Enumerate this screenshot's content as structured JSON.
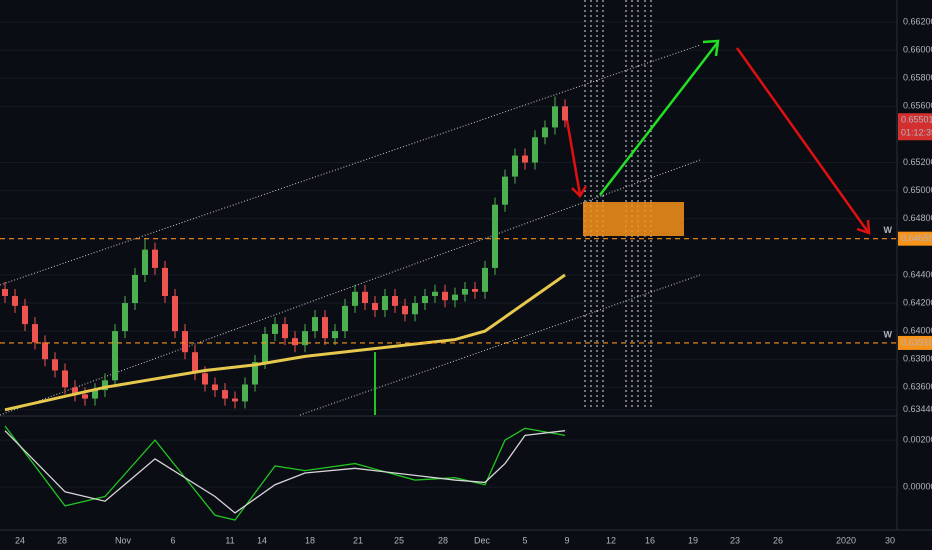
{
  "chart_data": {
    "type": "candlestick",
    "up_color": "#4caf50",
    "down_color": "#ef5350",
    "open": [
      0.643,
      0.6425,
      0.6418,
      0.6405,
      0.6392,
      0.638,
      0.6372,
      0.636,
      0.6355,
      0.6352,
      0.6358,
      0.6365,
      0.64,
      0.642,
      0.644,
      0.6458,
      0.6445,
      0.6425,
      0.64,
      0.6385,
      0.637,
      0.6362,
      0.6358,
      0.6352,
      0.635,
      0.6362,
      0.6378,
      0.6398,
      0.6405,
      0.6395,
      0.639,
      0.64,
      0.641,
      0.6395,
      0.64,
      0.6418,
      0.6428,
      0.642,
      0.6415,
      0.6425,
      0.6418,
      0.6412,
      0.642,
      0.6425,
      0.6428,
      0.6422,
      0.6426,
      0.643,
      0.6428,
      0.6445,
      0.649,
      0.651,
      0.6525,
      0.652,
      0.6538,
      0.6545,
      0.656
    ],
    "high": [
      0.6435,
      0.643,
      0.6423,
      0.641,
      0.6397,
      0.6385,
      0.6377,
      0.6365,
      0.636,
      0.6363,
      0.637,
      0.6405,
      0.6425,
      0.6445,
      0.6466,
      0.6463,
      0.645,
      0.643,
      0.6405,
      0.639,
      0.6375,
      0.6367,
      0.6363,
      0.6357,
      0.6367,
      0.6383,
      0.6403,
      0.641,
      0.641,
      0.64,
      0.6405,
      0.6415,
      0.6415,
      0.6405,
      0.6423,
      0.6433,
      0.6433,
      0.6425,
      0.643,
      0.643,
      0.6423,
      0.6425,
      0.643,
      0.6433,
      0.6433,
      0.6431,
      0.6435,
      0.6435,
      0.645,
      0.6495,
      0.6515,
      0.653,
      0.653,
      0.6543,
      0.655,
      0.6567,
      0.6565
    ],
    "low": [
      0.642,
      0.6413,
      0.64,
      0.6387,
      0.6375,
      0.6367,
      0.6355,
      0.635,
      0.6347,
      0.6347,
      0.6353,
      0.636,
      0.6395,
      0.6415,
      0.6435,
      0.644,
      0.642,
      0.6395,
      0.638,
      0.6365,
      0.6357,
      0.6353,
      0.6347,
      0.6345,
      0.6345,
      0.6357,
      0.6373,
      0.6393,
      0.639,
      0.6385,
      0.6385,
      0.6395,
      0.639,
      0.639,
      0.6395,
      0.6413,
      0.6415,
      0.641,
      0.641,
      0.6413,
      0.6407,
      0.6407,
      0.6415,
      0.642,
      0.6417,
      0.6417,
      0.6421,
      0.6423,
      0.6423,
      0.644,
      0.6485,
      0.6505,
      0.6515,
      0.6515,
      0.6533,
      0.654,
      0.6545
    ],
    "close": [
      0.6425,
      0.6418,
      0.6405,
      0.6392,
      0.638,
      0.6372,
      0.636,
      0.6355,
      0.6352,
      0.6358,
      0.6365,
      0.64,
      0.642,
      0.644,
      0.6458,
      0.6445,
      0.6425,
      0.64,
      0.6385,
      0.637,
      0.6362,
      0.6358,
      0.6352,
      0.635,
      0.6362,
      0.6378,
      0.6398,
      0.6405,
      0.6395,
      0.639,
      0.64,
      0.641,
      0.6395,
      0.64,
      0.6418,
      0.6428,
      0.642,
      0.6415,
      0.6425,
      0.6418,
      0.6412,
      0.642,
      0.6425,
      0.6428,
      0.6422,
      0.6426,
      0.643,
      0.6428,
      0.6445,
      0.649,
      0.651,
      0.6525,
      0.652,
      0.6538,
      0.6545,
      0.656,
      0.655
    ],
    "ma": {
      "color": "#e6c84d",
      "x": [
        0,
        10,
        20,
        25,
        30,
        40,
        45,
        48,
        50,
        53,
        56
      ],
      "values": [
        0.6344,
        0.636,
        0.6372,
        0.6376,
        0.6382,
        0.639,
        0.6394,
        0.64,
        0.641,
        0.6425,
        0.644
      ]
    },
    "ylim": [
      0.63403,
      0.66357
    ],
    "yticks": [
      {
        "value": 0.662,
        "label": "0.66200"
      },
      {
        "value": 0.66,
        "label": "0.66000"
      },
      {
        "value": 0.658,
        "label": "0.65800"
      },
      {
        "value": 0.656,
        "label": "0.65600"
      },
      {
        "value": 0.652,
        "label": "0.65200"
      },
      {
        "value": 0.65,
        "label": "0.65000"
      },
      {
        "value": 0.648,
        "label": "0.64800"
      },
      {
        "value": 0.644,
        "label": "0.64400"
      },
      {
        "value": 0.642,
        "label": "0.64200"
      },
      {
        "value": 0.64,
        "label": "0.64000"
      },
      {
        "value": 0.638,
        "label": "0.63800"
      },
      {
        "value": 0.636,
        "label": "0.63600"
      },
      {
        "value": 0.6344,
        "label": "0.63440"
      }
    ],
    "grid": true,
    "levels": [
      0.64658,
      0.63916
    ],
    "level_labels": [
      "W",
      "W"
    ],
    "level_color": "#f7931a",
    "last_price": 0.65501,
    "countdown": "01:12:39",
    "x_labels": [
      "24",
      "28",
      "Nov",
      "6",
      "11",
      "14",
      "18",
      "21",
      "25",
      "28",
      "Dec",
      "5",
      "9",
      "12",
      "16",
      "19",
      "23",
      "26",
      "2020",
      "30"
    ],
    "macd": {
      "ylim": [
        -0.00174,
        0.00294
      ],
      "yticks": [
        {
          "value": 0.002,
          "label": "0.00200"
        },
        {
          "value": 0,
          "label": "0.00000"
        }
      ],
      "series": [
        {
          "color": "#21c521",
          "x": [
            0,
            6,
            10,
            15,
            21,
            23,
            27,
            30,
            35,
            41,
            45,
            48,
            50,
            52,
            56
          ],
          "values": [
            0.0026,
            -0.0008,
            -0.0004,
            0.002,
            -0.0012,
            -0.0014,
            0.0009,
            0.0007,
            0.001,
            0.0003,
            0.0004,
            0.0001,
            0.002,
            0.0025,
            0.0022
          ]
        },
        {
          "color": "#d6d6d6",
          "x": [
            0,
            6,
            10,
            15,
            21,
            23,
            27,
            30,
            35,
            41,
            45,
            48,
            50,
            52,
            56
          ],
          "values": [
            0.0024,
            -0.0002,
            -0.0006,
            0.0012,
            -0.0004,
            -0.0011,
            0.0001,
            0.0006,
            0.0008,
            0.0005,
            0.0003,
            0.0002,
            0.001,
            0.0022,
            0.0024
          ]
        }
      ]
    }
  }
}
